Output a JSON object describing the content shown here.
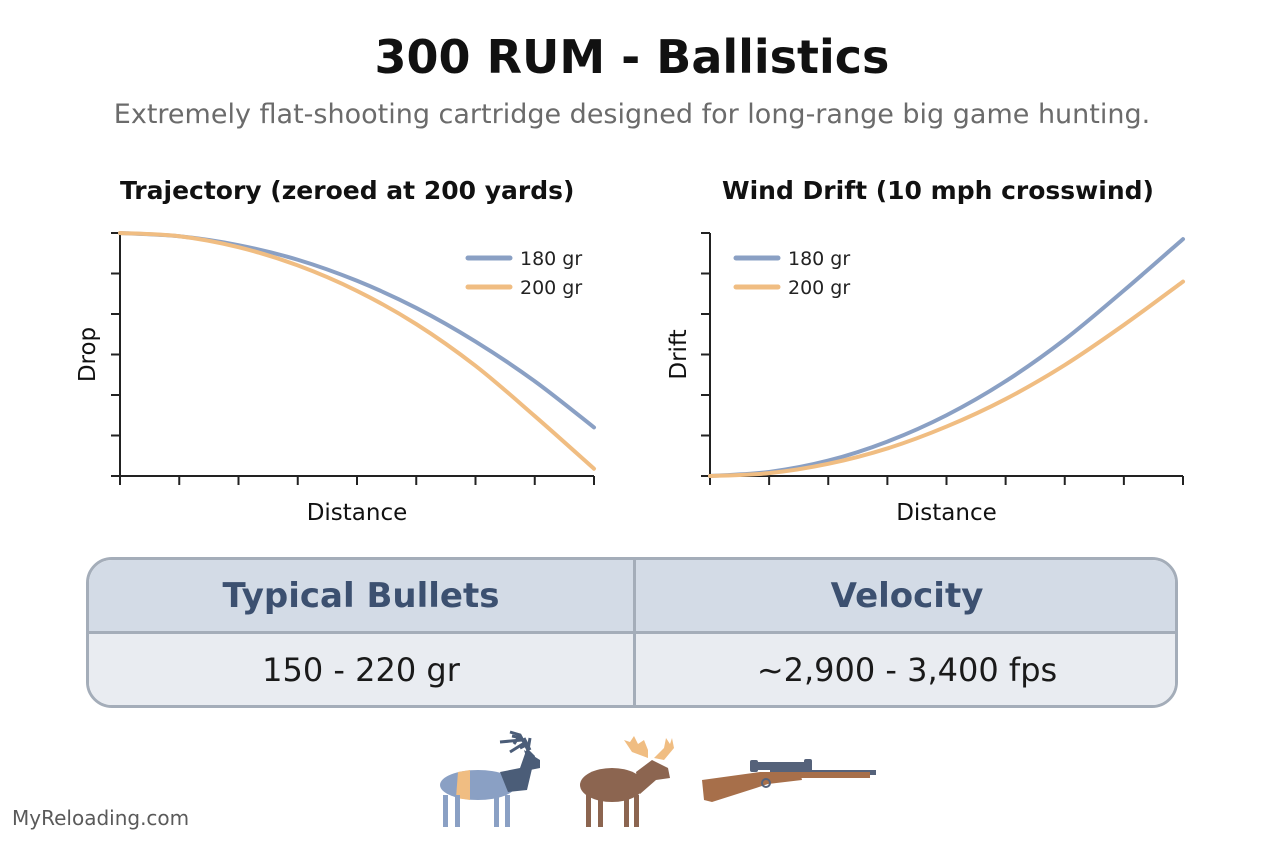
{
  "header": {
    "title": "300 RUM - Ballistics",
    "subtitle": "Extremely flat-shooting cartridge designed for long-range big game hunting."
  },
  "colors": {
    "series_180": "#8aa0c4",
    "series_200": "#f0bd82",
    "axis": "#222222",
    "table_header_bg": "#d3dbe6",
    "table_body_bg": "#e9ecf1",
    "table_border": "#a4adb9",
    "table_header_text": "#3c5070"
  },
  "chart_data": [
    {
      "type": "line",
      "title": "Trajectory (zeroed at 200 yards)",
      "xlabel": "Distance",
      "ylabel": "Drop",
      "xlim": [
        0,
        8
      ],
      "ylim": [
        -6,
        0
      ],
      "grid": false,
      "legend_position": "top-right",
      "x": [
        0,
        1,
        2,
        3,
        4,
        5,
        6,
        7,
        8
      ],
      "series": [
        {
          "name": "180 gr",
          "values": [
            0,
            -0.08,
            -0.3,
            -0.66,
            -1.18,
            -1.85,
            -2.68,
            -3.66,
            -4.8
          ]
        },
        {
          "name": "200 gr",
          "values": [
            0,
            -0.08,
            -0.35,
            -0.8,
            -1.43,
            -2.25,
            -3.28,
            -4.52,
            -5.82
          ]
        }
      ]
    },
    {
      "type": "line",
      "title": "Wind Drift (10 mph crosswind)",
      "xlabel": "Distance",
      "ylabel": "Drift",
      "xlim": [
        0,
        8
      ],
      "ylim": [
        0,
        6
      ],
      "grid": false,
      "legend_position": "top-left",
      "x": [
        0,
        1,
        2,
        3,
        4,
        5,
        6,
        7,
        8
      ],
      "series": [
        {
          "name": "180 gr",
          "values": [
            0,
            0.1,
            0.38,
            0.85,
            1.5,
            2.34,
            3.37,
            4.58,
            5.85
          ]
        },
        {
          "name": "200 gr",
          "values": [
            0,
            0.07,
            0.3,
            0.68,
            1.22,
            1.9,
            2.74,
            3.73,
            4.8
          ]
        }
      ]
    }
  ],
  "table": {
    "headers": [
      "Typical Bullets",
      "Velocity"
    ],
    "values": [
      "150 - 220 gr",
      "~2,900 - 3,400 fps"
    ]
  },
  "icons": [
    "elk-icon",
    "moose-icon",
    "rifle-icon"
  ],
  "footer": {
    "watermark": "MyReloading.com"
  }
}
